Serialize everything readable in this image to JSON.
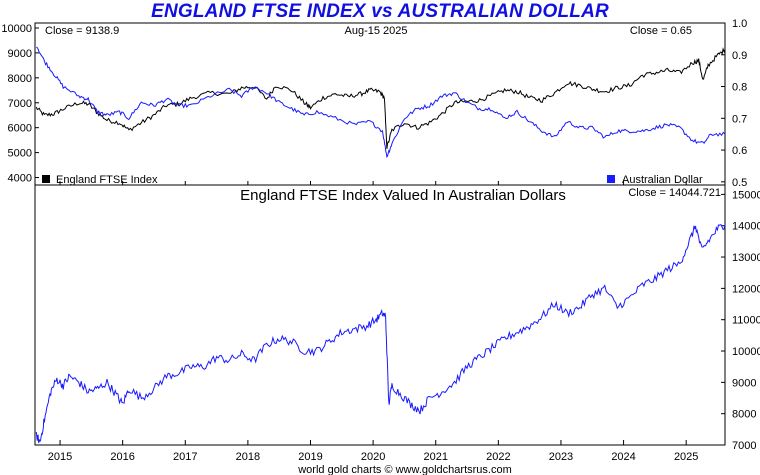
{
  "title": "ENGLAND FTSE INDEX vs AUSTRALIAN DOLLAR",
  "top_panel": {
    "close_left": "Close = 9138.9",
    "date": "Aug-15  2025",
    "close_right": "Close = 0.65",
    "legend_left": "England FTSE Index",
    "legend_right": "Australian Dollar"
  },
  "bottom_panel": {
    "title": "England FTSE Index Valued In Australian Dollars",
    "close": "Close = 14044.721"
  },
  "footer": "world gold charts © www.goldchartsrus.com",
  "colors": {
    "ftse": "#000000",
    "aud": "#1a1aff",
    "ratio": "#1a1aff",
    "title": "#1010e0"
  },
  "chart_data": [
    {
      "type": "line",
      "x_ticks": [
        "2015",
        "2016",
        "2017",
        "2018",
        "2019",
        "2020",
        "2021",
        "2022",
        "2023",
        "2024",
        "2025"
      ],
      "xlim": [
        2014.6,
        2025.62
      ],
      "y_left": {
        "ticks": [
          4000,
          5000,
          6000,
          7000,
          8000,
          9000,
          10000
        ],
        "ylim": [
          3700,
          10200
        ]
      },
      "y_right": {
        "ticks": [
          0.5,
          0.6,
          0.7,
          0.8,
          0.9,
          1.0
        ],
        "ylim": [
          0.49,
          1.0
        ]
      },
      "series": [
        {
          "name": "England FTSE Index",
          "axis": "left",
          "x": [
            2014.62,
            2014.75,
            2014.9,
            2015.05,
            2015.3,
            2015.45,
            2015.6,
            2015.75,
            2015.95,
            2016.1,
            2016.3,
            2016.5,
            2016.7,
            2016.9,
            2017.1,
            2017.4,
            2017.7,
            2017.9,
            2018.1,
            2018.3,
            2018.45,
            2018.7,
            2018.9,
            2019.0,
            2019.2,
            2019.4,
            2019.6,
            2019.8,
            2019.95,
            2020.1,
            2020.18,
            2020.22,
            2020.3,
            2020.5,
            2020.7,
            2020.9,
            2021.1,
            2021.3,
            2021.5,
            2021.7,
            2021.9,
            2022.1,
            2022.3,
            2022.5,
            2022.7,
            2022.9,
            2023.1,
            2023.3,
            2023.5,
            2023.7,
            2023.9,
            2024.1,
            2024.3,
            2024.5,
            2024.7,
            2024.9,
            2025.1,
            2025.2,
            2025.27,
            2025.35,
            2025.5,
            2025.62
          ],
          "values": [
            6800,
            6500,
            6550,
            6750,
            7000,
            6950,
            6600,
            6300,
            6200,
            5900,
            6200,
            6500,
            6900,
            6950,
            7200,
            7400,
            7350,
            7600,
            7650,
            7150,
            7700,
            7500,
            7000,
            6800,
            7200,
            7350,
            7250,
            7350,
            7500,
            7450,
            7200,
            5200,
            5900,
            6200,
            6000,
            6200,
            6550,
            7000,
            7050,
            7100,
            7300,
            7500,
            7450,
            7200,
            7100,
            7400,
            7800,
            7700,
            7550,
            7450,
            7600,
            7700,
            8100,
            8200,
            8300,
            8200,
            8600,
            8700,
            7900,
            8500,
            8900,
            9139
          ]
        },
        {
          "name": "Australian Dollar",
          "axis": "right",
          "x": [
            2014.62,
            2014.75,
            2014.9,
            2015.05,
            2015.3,
            2015.45,
            2015.6,
            2015.75,
            2015.95,
            2016.1,
            2016.3,
            2016.5,
            2016.7,
            2016.9,
            2017.1,
            2017.4,
            2017.7,
            2017.9,
            2018.1,
            2018.3,
            2018.5,
            2018.7,
            2018.9,
            2019.1,
            2019.4,
            2019.7,
            2019.95,
            2020.15,
            2020.22,
            2020.3,
            2020.5,
            2020.7,
            2020.9,
            2021.1,
            2021.3,
            2021.5,
            2021.7,
            2021.9,
            2022.1,
            2022.3,
            2022.5,
            2022.7,
            2022.9,
            2023.1,
            2023.3,
            2023.5,
            2023.7,
            2023.9,
            2024.1,
            2024.3,
            2024.5,
            2024.7,
            2024.9,
            2025.1,
            2025.27,
            2025.4,
            2025.62
          ],
          "values": [
            0.93,
            0.88,
            0.84,
            0.8,
            0.77,
            0.76,
            0.72,
            0.71,
            0.72,
            0.7,
            0.75,
            0.74,
            0.76,
            0.74,
            0.74,
            0.77,
            0.79,
            0.77,
            0.8,
            0.78,
            0.75,
            0.73,
            0.71,
            0.72,
            0.7,
            0.68,
            0.69,
            0.66,
            0.58,
            0.62,
            0.7,
            0.73,
            0.74,
            0.77,
            0.78,
            0.75,
            0.73,
            0.73,
            0.7,
            0.72,
            0.69,
            0.66,
            0.64,
            0.69,
            0.67,
            0.67,
            0.64,
            0.66,
            0.66,
            0.66,
            0.67,
            0.68,
            0.67,
            0.63,
            0.62,
            0.65,
            0.65
          ]
        }
      ]
    },
    {
      "type": "line",
      "title": "England FTSE Index Valued In Australian Dollars",
      "x_ticks": [
        "2015",
        "2016",
        "2017",
        "2018",
        "2019",
        "2020",
        "2021",
        "2022",
        "2023",
        "2024",
        "2025"
      ],
      "xlim": [
        2014.6,
        2025.62
      ],
      "y_right": {
        "ticks": [
          7000,
          8000,
          9000,
          10000,
          11000,
          12000,
          13000,
          14000,
          15000
        ],
        "ylim": [
          7000,
          15300
        ]
      },
      "series": [
        {
          "name": "England FTSE Index Valued In Australian Dollars",
          "axis": "right",
          "x": [
            2014.62,
            2014.68,
            2014.75,
            2014.85,
            2014.95,
            2015.05,
            2015.15,
            2015.3,
            2015.45,
            2015.6,
            2015.75,
            2015.9,
            2016.0,
            2016.1,
            2016.3,
            2016.5,
            2016.7,
            2016.9,
            2017.1,
            2017.3,
            2017.5,
            2017.7,
            2017.9,
            2018.1,
            2018.3,
            2018.5,
            2018.7,
            2018.9,
            2019.1,
            2019.3,
            2019.5,
            2019.7,
            2019.9,
            2020.05,
            2020.15,
            2020.2,
            2020.25,
            2020.3,
            2020.45,
            2020.6,
            2020.75,
            2020.9,
            2021.1,
            2021.3,
            2021.5,
            2021.7,
            2021.9,
            2022.1,
            2022.3,
            2022.5,
            2022.7,
            2022.9,
            2023.1,
            2023.3,
            2023.5,
            2023.7,
            2023.9,
            2024.1,
            2024.3,
            2024.5,
            2024.7,
            2024.9,
            2025.05,
            2025.15,
            2025.25,
            2025.35,
            2025.5,
            2025.62
          ],
          "values": [
            7300,
            7100,
            7800,
            8700,
            9100,
            8900,
            9200,
            9000,
            8700,
            8800,
            9000,
            8600,
            8300,
            8800,
            8500,
            8800,
            9200,
            9300,
            9500,
            9500,
            9800,
            9700,
            9900,
            9700,
            10200,
            10400,
            10300,
            10000,
            10000,
            10300,
            10600,
            10700,
            10800,
            11000,
            11200,
            11100,
            8300,
            8900,
            8600,
            8300,
            8100,
            8500,
            8700,
            9000,
            9500,
            9800,
            10100,
            10400,
            10600,
            10800,
            11100,
            11500,
            11200,
            11400,
            11800,
            12000,
            11400,
            11700,
            12100,
            12300,
            12600,
            12800,
            13500,
            14000,
            13200,
            13500,
            13900,
            14045
          ]
        }
      ]
    }
  ]
}
